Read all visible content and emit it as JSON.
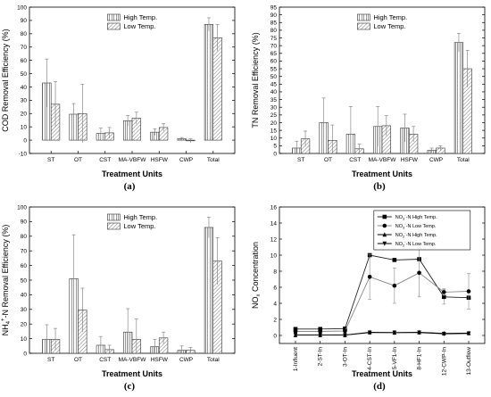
{
  "chart_data": [
    {
      "panel": "(a)",
      "type": "bar",
      "categories": [
        "ST",
        "OT",
        "CST",
        "MA-VBFW",
        "HSFW",
        "CWP",
        "Total"
      ],
      "series": [
        {
          "name": "High Temp.",
          "values": [
            43,
            19.5,
            5,
            14.5,
            6,
            1,
            87
          ],
          "errors": [
            18,
            8,
            4,
            4,
            2.5,
            1,
            5
          ]
        },
        {
          "name": "Low Temp.",
          "values": [
            27,
            20,
            5.5,
            16.5,
            9.5,
            -0.5,
            77
          ],
          "errors": [
            17,
            22,
            4,
            4.5,
            3,
            1.5,
            10
          ]
        }
      ],
      "ylabel": "COD Removal Efficiency (%)",
      "xlabel": "Treatment Units",
      "ylim": [
        -10,
        100
      ],
      "yticks": [
        -10,
        0,
        10,
        20,
        30,
        40,
        50,
        60,
        70,
        80,
        90,
        100
      ],
      "legend_position": "top-middle"
    },
    {
      "panel": "(b)",
      "type": "bar",
      "categories": [
        "ST",
        "OT",
        "CST",
        "MA-VBFW",
        "HSFW",
        "CWP",
        "Total"
      ],
      "series": [
        {
          "name": "High Temp.",
          "values": [
            3.5,
            20,
            12.5,
            17.5,
            16.5,
            2,
            72
          ],
          "errors": [
            4.5,
            16,
            18,
            13,
            9,
            1.5,
            6
          ]
        },
        {
          "name": "Low Temp.",
          "values": [
            9.5,
            8.5,
            3,
            18,
            12.5,
            3.5,
            55
          ],
          "errors": [
            5,
            10,
            3,
            6.5,
            5,
            1.5,
            12
          ]
        }
      ],
      "ylabel": "TN Removal Efficiency (%)",
      "xlabel": "Treatment Units",
      "ylim": [
        0,
        95
      ],
      "yticks": [
        0,
        5,
        10,
        15,
        20,
        25,
        30,
        35,
        40,
        45,
        50,
        55,
        60,
        65,
        70,
        75,
        80,
        85,
        90,
        95
      ],
      "legend_position": "top-middle"
    },
    {
      "panel": "(c)",
      "type": "bar",
      "categories": [
        "ST",
        "OT",
        "CST",
        "MA-VBFW",
        "HSFW",
        "CWP",
        "Total"
      ],
      "series": [
        {
          "name": "High Temp.",
          "values": [
            9.5,
            51,
            5.5,
            14.5,
            4.5,
            2,
            86
          ],
          "errors": [
            10,
            30,
            6,
            16,
            5,
            3,
            7
          ]
        },
        {
          "name": "Low Temp.",
          "values": [
            9.5,
            29.5,
            2.5,
            9.5,
            10.5,
            2,
            63
          ],
          "errors": [
            7.5,
            15,
            3,
            14,
            4,
            2,
            16
          ]
        }
      ],
      "ylabel": "NH",
      "ylabel_sub": "4",
      "ylabel_sup": "+",
      "ylabel_rest": "-N Removal Efficiency (%)",
      "xlabel": "Treatment Units",
      "ylim": [
        0,
        100
      ],
      "yticks": [
        0,
        10,
        20,
        30,
        40,
        50,
        60,
        70,
        80,
        90,
        100
      ],
      "legend_position": "top-middle"
    },
    {
      "panel": "(d)",
      "type": "line",
      "categories": [
        "1-Influent",
        "2-ST-In",
        "3-OT-In",
        "4-CST-In",
        "5-VF1-In",
        "8-HF1-In",
        "12-CWP-In",
        "13-Outflow"
      ],
      "series": [
        {
          "name": "NO3-N High Temp.",
          "marker": "square",
          "values": [
            0.8,
            0.8,
            0.85,
            10,
            9.4,
            9.5,
            4.8,
            4.7
          ],
          "errors": [
            0,
            0,
            0,
            0,
            0,
            0,
            0.9,
            0
          ]
        },
        {
          "name": "NO3-N Low Temp.",
          "marker": "circle",
          "values": [
            0.5,
            0.5,
            0.55,
            7.3,
            6.2,
            7.8,
            5.4,
            5.5
          ],
          "errors": [
            0,
            0,
            0,
            2.8,
            2.2,
            3,
            0.4,
            2.2
          ]
        },
        {
          "name": "NO2-N High Temp.",
          "marker": "triangle-up",
          "values": [
            0.05,
            0.05,
            0.05,
            0.4,
            0.35,
            0.4,
            0.25,
            0.3
          ],
          "errors": [
            0,
            0,
            0,
            0,
            0,
            0,
            0,
            0
          ]
        },
        {
          "name": "NO2-N Low Temp.",
          "marker": "triangle-down",
          "values": [
            0.05,
            0.05,
            0.05,
            0.35,
            0.35,
            0.35,
            0.2,
            0.25
          ],
          "errors": [
            0,
            0,
            0,
            0,
            0,
            0,
            0,
            0
          ]
        }
      ],
      "legend": [
        {
          "prefix": "NO",
          "sub": "3",
          "sup": "-",
          "suffix": "-N High Temp."
        },
        {
          "prefix": "NO",
          "sub": "3",
          "sup": "-",
          "suffix": "-N Low Temp."
        },
        {
          "prefix": "NO",
          "sub": "2",
          "sup": "-",
          "suffix": "-N High Temp."
        },
        {
          "prefix": "NO",
          "sub": "2",
          "sup": "-",
          "suffix": "-N Low Temp."
        }
      ],
      "ylabel": "NO",
      "ylabel_sub": "x",
      "ylabel_rest": " Concentration",
      "xlabel": "Treatment Units",
      "ylim": [
        -1,
        16
      ],
      "yticks": [
        0,
        2,
        4,
        6,
        8,
        10,
        12,
        14,
        16
      ],
      "legend_position": "top-right"
    }
  ]
}
